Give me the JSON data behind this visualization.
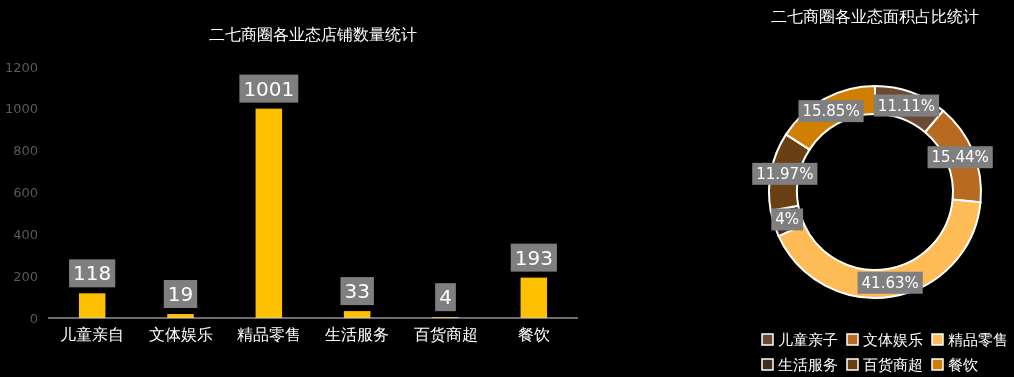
{
  "chart_data": [
    {
      "type": "bar",
      "title": "二七商圈各业态店铺数量统计",
      "categories": [
        "儿童亲自",
        "文体娱乐",
        "精品零售",
        "生活服务",
        "百货商超",
        "餐饮"
      ],
      "values": [
        118,
        19,
        1001,
        33,
        4,
        193
      ],
      "color": "#ffc000",
      "ylim": [
        0,
        1200
      ],
      "yticks": [
        0,
        200,
        400,
        600,
        800,
        1000,
        1200
      ],
      "grid": false,
      "data_labels": true
    },
    {
      "type": "donut",
      "title": "二七商圈各业态面积占比统计",
      "categories": [
        "儿童亲子",
        "文体娱乐",
        "精品零售",
        "生活服务",
        "百货商超",
        "餐饮"
      ],
      "values": [
        11.11,
        15.44,
        41.63,
        4,
        11.97,
        15.85
      ],
      "value_labels": [
        "11.11%",
        "15.44%",
        "41.63%",
        "4%",
        "11.97%",
        "15.85%"
      ],
      "colors": [
        "#6b4a35",
        "#b86a20",
        "#ffbb55",
        "#3f2e20",
        "#6b3f14",
        "#d07f00"
      ],
      "legend": "bottom"
    }
  ]
}
